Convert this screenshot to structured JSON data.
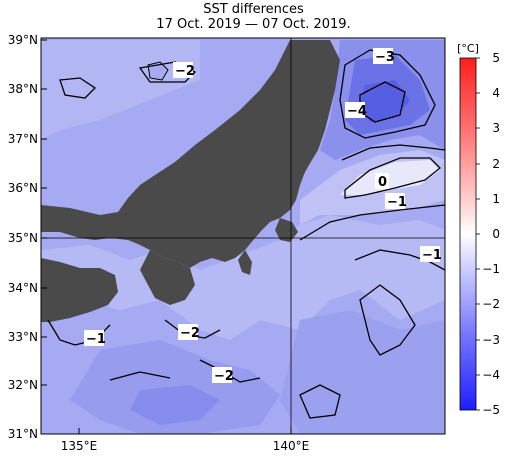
{
  "title": "SST differences",
  "subtitle": "17 Oct. 2019 — 07 Oct. 2019.",
  "map": {
    "lat_labels": [
      "39°N",
      "38°N",
      "37°N",
      "36°N",
      "35°N",
      "34°N",
      "33°N",
      "32°N",
      "31°N"
    ],
    "lon_labels": [
      "135°E",
      "140°E"
    ],
    "contour_labels": [
      "−2",
      "−3",
      "−4",
      "0",
      "−1",
      "−1",
      "−2",
      "−1",
      "−2"
    ]
  },
  "colorbar": {
    "unit": "[°C]",
    "ticks": [
      "5",
      "4",
      "3",
      "2",
      "1",
      "0",
      "−1",
      "−2",
      "−3",
      "−4",
      "−5"
    ],
    "range": [
      -5,
      5
    ]
  },
  "colors": {
    "land": "#4a4a4a",
    "sea_base": "#a5aaf2",
    "sea_light": "#c6c8f5",
    "sea_dark": "#8a90ec",
    "sea_deep": "#5a62e4",
    "warm_max": "#ff2020",
    "cold_max": "#2a30ff"
  }
}
